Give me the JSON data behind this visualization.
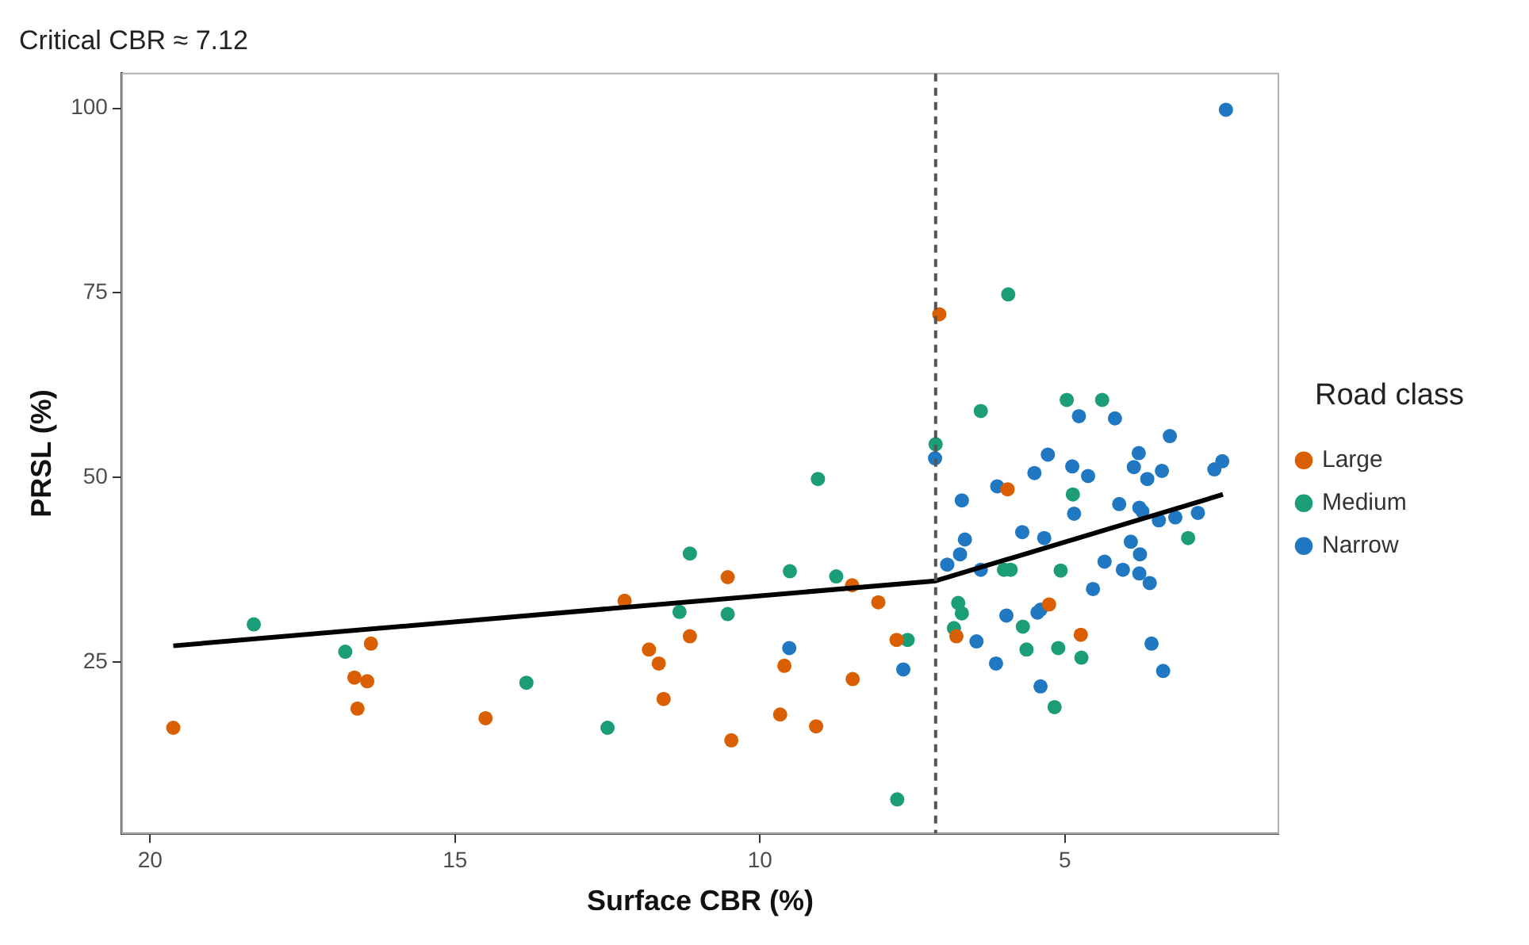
{
  "chart_data": {
    "type": "scatter",
    "title": "Critical CBR ≈ 7.12",
    "xlabel": "Surface CBR (%)",
    "ylabel": "PRSL (%)",
    "legend_title": "Road class",
    "legend": "right",
    "marker": "circle",
    "xlim": [
      20.46,
      1.5
    ],
    "xticks": [
      20,
      15,
      10,
      5
    ],
    "ylim": [
      1.8,
      104.7
    ],
    "yticks": [
      25,
      50,
      75,
      100
    ],
    "ref_lines": [
      {
        "axis": "x",
        "value": 7.12,
        "color": "#555555",
        "line_style": "dashed"
      }
    ],
    "series": [
      {
        "name": "Large",
        "color": "#d95f02",
        "x": [
          19.62,
          16.38,
          16.65,
          16.44,
          16.6,
          14.5,
          12.22,
          11.82,
          11.66,
          11.58,
          11.15,
          10.53,
          10.47,
          9.67,
          9.6,
          9.08,
          8.48,
          8.49,
          8.06,
          7.76,
          7.06,
          5.94,
          5.26,
          6.78,
          4.74
        ],
        "values": [
          16.1,
          27.5,
          22.9,
          22.4,
          18.7,
          17.4,
          33.3,
          26.7,
          24.8,
          20.0,
          28.5,
          36.5,
          14.4,
          17.9,
          24.5,
          16.3,
          22.7,
          35.4,
          33.1,
          28.0,
          72.1,
          48.4,
          32.8,
          28.5,
          28.7
        ]
      },
      {
        "name": "Medium",
        "color": "#1b9e77",
        "x": [
          18.3,
          16.8,
          13.83,
          12.5,
          11.32,
          11.15,
          10.53,
          9.51,
          9.05,
          8.75,
          7.58,
          7.75,
          7.12,
          6.38,
          5.93,
          4.97,
          4.39,
          4.87,
          2.98,
          6.0,
          5.89,
          5.07,
          6.75,
          6.69,
          6.82,
          5.69,
          5.63,
          5.11,
          4.73,
          5.17
        ],
        "values": [
          30.1,
          26.4,
          22.2,
          16.1,
          31.8,
          39.7,
          31.5,
          37.3,
          49.8,
          36.6,
          28.0,
          6.4,
          54.5,
          59.0,
          74.8,
          60.5,
          60.5,
          47.7,
          41.8,
          37.5,
          37.5,
          37.4,
          33.0,
          31.6,
          29.6,
          29.8,
          26.7,
          26.9,
          25.6,
          18.9
        ]
      },
      {
        "name": "Narrow",
        "color": "#1f78c1",
        "x": [
          9.52,
          7.65,
          7.13,
          4.77,
          4.18,
          3.28,
          5.28,
          3.79,
          3.87,
          3.41,
          4.88,
          4.62,
          5.5,
          3.65,
          6.11,
          2.55,
          2.42,
          6.69,
          4.85,
          4.11,
          3.78,
          3.73,
          3.46,
          3.19,
          2.82,
          5.7,
          5.34,
          6.64,
          3.92,
          6.72,
          3.77,
          6.93,
          4.35,
          4.05,
          3.78,
          3.61,
          6.38,
          4.54,
          5.45,
          5.4,
          5.96,
          6.45,
          3.58,
          6.13,
          3.39,
          5.4,
          2.36
        ],
        "values": [
          26.9,
          24.0,
          52.6,
          58.3,
          58.0,
          55.6,
          53.1,
          53.3,
          51.4,
          50.9,
          51.5,
          50.2,
          50.6,
          49.8,
          48.8,
          51.1,
          52.2,
          46.9,
          45.1,
          46.4,
          45.9,
          45.4,
          44.2,
          44.6,
          45.2,
          42.6,
          41.8,
          41.6,
          41.3,
          39.6,
          39.6,
          38.2,
          38.6,
          37.5,
          37.0,
          35.7,
          37.5,
          34.9,
          31.7,
          32.1,
          31.3,
          27.8,
          27.5,
          24.8,
          23.8,
          21.7,
          99.8
        ]
      },
      {
        "type": "line",
        "marker": "none",
        "color": "#000000",
        "x": [
          19.62,
          7.12,
          2.41
        ],
        "values": [
          27.2,
          36.0,
          47.7
        ]
      }
    ]
  }
}
